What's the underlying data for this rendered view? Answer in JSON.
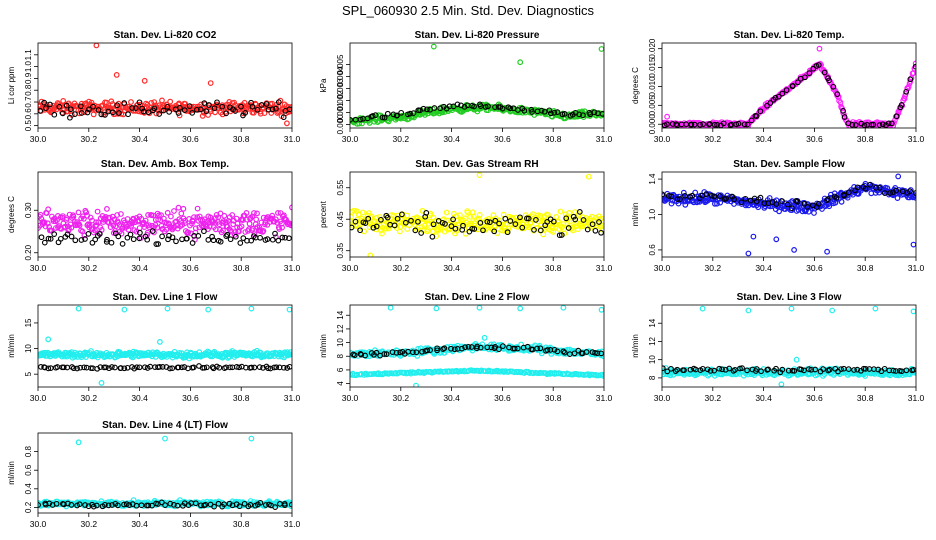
{
  "figure": {
    "title": "SPL_060930  2.5 Min. Std. Dev. Diagnostics"
  },
  "chart_data": [
    {
      "type": "scatter",
      "title": "Stan. Dev. Li-820 CO2",
      "ylabel": "Li cor ppm",
      "xlim": [
        30.0,
        31.0
      ],
      "ylim": [
        0.48,
        1.2
      ],
      "xticks": [
        "30.0",
        "30.2",
        "30.4",
        "30.6",
        "30.8",
        "31.0"
      ],
      "yticks": [
        "0.5",
        "0.6",
        "0.7",
        "0.8",
        "0.9",
        "1.0",
        "1.1"
      ],
      "color": "#ff2a2a",
      "dense": {
        "x": [
          30.0,
          31.0
        ],
        "y": [
          0.65,
          0.65
        ],
        "spread": 0.08,
        "n": 300
      },
      "black": {
        "y": [
          0.64,
          0.64
        ],
        "spread": 0.09,
        "n": 70
      },
      "points": [
        [
          30.23,
          1.18
        ],
        [
          30.31,
          0.93
        ],
        [
          30.42,
          0.88
        ],
        [
          30.68,
          0.86
        ],
        [
          30.98,
          0.52
        ]
      ]
    },
    {
      "type": "scatter",
      "title": "Stan. Dev. Li-820 Pressure",
      "ylabel": "kPa",
      "xlim": [
        30.0,
        31.0
      ],
      "ylim": [
        -0.0003,
        0.0068
      ],
      "xticks": [
        "30.0",
        "30.2",
        "30.4",
        "30.6",
        "30.8",
        "31.0"
      ],
      "yticks": [
        "0.000",
        "0.001",
        "0.002",
        "0.003",
        "0.004",
        "0.005"
      ],
      "color": "#22cc22",
      "dense": {
        "x": [
          30.0,
          30.2,
          30.4,
          30.55,
          30.7,
          30.85,
          31.0
        ],
        "y": [
          0.0003,
          0.0006,
          0.0013,
          0.0014,
          0.0011,
          0.0007,
          0.0009
        ],
        "spread": 0.0004,
        "n": 300
      },
      "black": {
        "y": [
          0.0004,
          0.0008,
          0.0015,
          0.0016,
          0.0012,
          0.0008,
          0.001
        ],
        "spread": 0.0003,
        "n": 70
      },
      "points": [
        [
          30.33,
          0.0065
        ],
        [
          30.67,
          0.0052
        ],
        [
          30.99,
          0.0063
        ]
      ]
    },
    {
      "type": "scatter",
      "title": "Stan. Dev. Li-820 Temp.",
      "ylabel": "degrees C",
      "xlim": [
        30.0,
        31.0
      ],
      "ylim": [
        -0.001,
        0.0215
      ],
      "xticks": [
        "30.0",
        "30.2",
        "30.4",
        "30.6",
        "30.8",
        "31.0"
      ],
      "yticks": [
        "0.000",
        "0.005",
        "0.010",
        "0.015",
        "0.020"
      ],
      "color": "#ff22ff",
      "dense": {
        "x": [
          30.0,
          30.34,
          30.38,
          30.45,
          30.55,
          30.62,
          30.69,
          30.73,
          30.91,
          30.95,
          31.0
        ],
        "y": [
          0.0,
          0.0,
          0.003,
          0.007,
          0.012,
          0.016,
          0.008,
          0.0,
          0.0,
          0.006,
          0.016
        ],
        "spread": 0.0008,
        "n": 320
      },
      "black": {
        "y": [
          0.0,
          0.0,
          0.003,
          0.007,
          0.012,
          0.016,
          0.008,
          0.0,
          0.0,
          0.006,
          0.016
        ],
        "spread": 0.0006,
        "n": 70
      },
      "points": [
        [
          30.62,
          0.02
        ],
        [
          30.02,
          0.002
        ]
      ]
    },
    {
      "type": "scatter",
      "title": "Stan. Dev. Amb. Box Temp.",
      "ylabel": "degrees C",
      "xlim": [
        30.0,
        31.0
      ],
      "ylim": [
        0.19,
        0.39
      ],
      "xticks": [
        "30.0",
        "30.2",
        "30.4",
        "30.6",
        "30.8",
        "31.0"
      ],
      "yticks": [
        "0.20",
        "0.30"
      ],
      "color": "#ee22ee",
      "dense": {
        "x": [
          30.0,
          31.0
        ],
        "y": [
          0.27,
          0.27
        ],
        "spread": 0.045,
        "n": 330
      },
      "black": {
        "y": [
          0.235,
          0.235
        ],
        "spread": 0.02,
        "n": 70
      },
      "points": []
    },
    {
      "type": "scatter",
      "title": "Stan. Dev. Gas Stream RH",
      "ylabel": "percent",
      "xlim": [
        30.0,
        31.0
      ],
      "ylim": [
        0.33,
        0.6
      ],
      "xticks": [
        "30.0",
        "30.2",
        "30.4",
        "30.6",
        "30.8",
        "31.0"
      ],
      "yticks": [
        "0.35",
        "0.45",
        "0.55"
      ],
      "color": "#ffff00",
      "dense": {
        "x": [
          30.0,
          31.0
        ],
        "y": [
          0.44,
          0.44
        ],
        "spread": 0.05,
        "n": 320
      },
      "black": {
        "y": [
          0.43,
          0.43
        ],
        "spread": 0.05,
        "n": 70
      },
      "points": [
        [
          30.08,
          0.335
        ],
        [
          30.51,
          0.59
        ],
        [
          30.94,
          0.585
        ]
      ]
    },
    {
      "type": "scatter",
      "title": "Stan. Dev. Sample Flow",
      "ylabel": "ml/min",
      "xlim": [
        30.0,
        31.0
      ],
      "ylim": [
        0.52,
        1.48
      ],
      "xticks": [
        "30.0",
        "30.2",
        "30.4",
        "30.6",
        "30.8",
        "31.0"
      ],
      "yticks": [
        "0.6",
        "1.0",
        "1.4"
      ],
      "color": "#1a1aee",
      "dense": {
        "x": [
          30.0,
          30.2,
          30.4,
          30.6,
          30.7,
          30.8,
          31.0
        ],
        "y": [
          1.18,
          1.18,
          1.12,
          1.08,
          1.2,
          1.3,
          1.22
        ],
        "spread": 0.09,
        "n": 330
      },
      "black": {
        "y": [
          1.2,
          1.2,
          1.15,
          1.1,
          1.22,
          1.32,
          1.24
        ],
        "spread": 0.06,
        "n": 60
      },
      "points": [
        [
          30.34,
          0.56
        ],
        [
          30.36,
          0.75
        ],
        [
          30.45,
          0.72
        ],
        [
          30.52,
          0.6
        ],
        [
          30.65,
          0.58
        ],
        [
          30.99,
          0.66
        ],
        [
          30.93,
          1.43
        ]
      ]
    },
    {
      "type": "scatter",
      "title": "Stan. Dev. Line 1 Flow",
      "ylabel": "ml/min",
      "xlim": [
        30.0,
        31.0
      ],
      "ylim": [
        2.5,
        18.5
      ],
      "xticks": [
        "30.0",
        "30.2",
        "30.4",
        "30.6",
        "30.8",
        "31.0"
      ],
      "yticks": [
        "5",
        "10",
        "15"
      ],
      "color": "#22eeee",
      "dense": {
        "x": [
          30.0,
          31.0
        ],
        "y": [
          8.8,
          8.8
        ],
        "spread": 0.9,
        "n": 330
      },
      "black": {
        "y": [
          6.3,
          6.3
        ],
        "spread": 0.35,
        "n": 80
      },
      "points": [
        [
          30.16,
          17.8
        ],
        [
          30.34,
          17.6
        ],
        [
          30.51,
          17.8
        ],
        [
          30.67,
          17.6
        ],
        [
          30.84,
          17.8
        ],
        [
          30.99,
          17.6
        ],
        [
          30.04,
          11.8
        ],
        [
          30.25,
          3.3
        ],
        [
          30.48,
          11.3
        ]
      ]
    },
    {
      "type": "scatter",
      "title": "Stan. Dev. Line 2 Flow",
      "ylabel": "ml/min",
      "xlim": [
        30.0,
        31.0
      ],
      "ylim": [
        3.5,
        15.5
      ],
      "xticks": [
        "30.0",
        "30.2",
        "30.4",
        "30.6",
        "30.8",
        "31.0"
      ],
      "yticks": [
        "4",
        "6",
        "8",
        "10",
        "12",
        "14"
      ],
      "color": "#22eeee",
      "dense": {
        "x": [
          30.0,
          30.25,
          30.5,
          30.75,
          31.0
        ],
        "y": [
          8.2,
          8.6,
          9.4,
          9.0,
          8.3
        ],
        "spread": 0.7,
        "n": 300
      },
      "black": {
        "y": [
          8.2,
          8.6,
          9.4,
          9.0,
          8.3
        ],
        "spread": 0.4,
        "n": 70
      },
      "low": {
        "x": [
          30.0,
          30.5,
          31.0
        ],
        "y": [
          5.3,
          5.9,
          5.2
        ],
        "spread": 0.15,
        "n": 180
      },
      "points": [
        [
          30.16,
          15.1
        ],
        [
          30.34,
          15.0
        ],
        [
          30.51,
          15.1
        ],
        [
          30.67,
          15.0
        ],
        [
          30.84,
          15.1
        ],
        [
          30.99,
          14.8
        ],
        [
          30.53,
          10.7
        ],
        [
          30.26,
          3.7
        ]
      ]
    },
    {
      "type": "scatter",
      "title": "Stan. Dev. Line 3 Flow",
      "ylabel": "ml/min",
      "xlim": [
        30.0,
        31.0
      ],
      "ylim": [
        7.0,
        16.0
      ],
      "xticks": [
        "30.0",
        "30.2",
        "30.4",
        "30.6",
        "30.8",
        "31.0"
      ],
      "yticks": [
        "8",
        "10",
        "12",
        "14"
      ],
      "color": "#22eeee",
      "dense": {
        "x": [
          30.0,
          31.0
        ],
        "y": [
          8.6,
          8.6
        ],
        "spread": 0.55,
        "n": 330
      },
      "black": {
        "y": [
          8.9,
          8.9
        ],
        "spread": 0.35,
        "n": 70
      },
      "points": [
        [
          30.16,
          15.6
        ],
        [
          30.34,
          15.4
        ],
        [
          30.51,
          15.6
        ],
        [
          30.67,
          15.4
        ],
        [
          30.84,
          15.6
        ],
        [
          30.99,
          15.3
        ],
        [
          30.53,
          10.0
        ],
        [
          30.47,
          7.3
        ]
      ]
    },
    {
      "type": "scatter",
      "title": "Stan. Dev. Line 4 (LT) Flow",
      "ylabel": "ml/min",
      "xlim": [
        30.0,
        31.0
      ],
      "ylim": [
        0.14,
        1.0
      ],
      "xticks": [
        "30.0",
        "30.2",
        "30.4",
        "30.6",
        "30.8",
        "31.0"
      ],
      "yticks": [
        "0.2",
        "0.4",
        "0.6",
        "0.8"
      ],
      "color": "#22eeee",
      "dense": {
        "x": [
          30.0,
          31.0
        ],
        "y": [
          0.24,
          0.24
        ],
        "spread": 0.04,
        "n": 330
      },
      "black": {
        "y": [
          0.23,
          0.23
        ],
        "spread": 0.035,
        "n": 70
      },
      "points": [
        [
          30.16,
          0.9
        ],
        [
          30.5,
          0.94
        ],
        [
          30.84,
          0.94
        ]
      ]
    }
  ]
}
